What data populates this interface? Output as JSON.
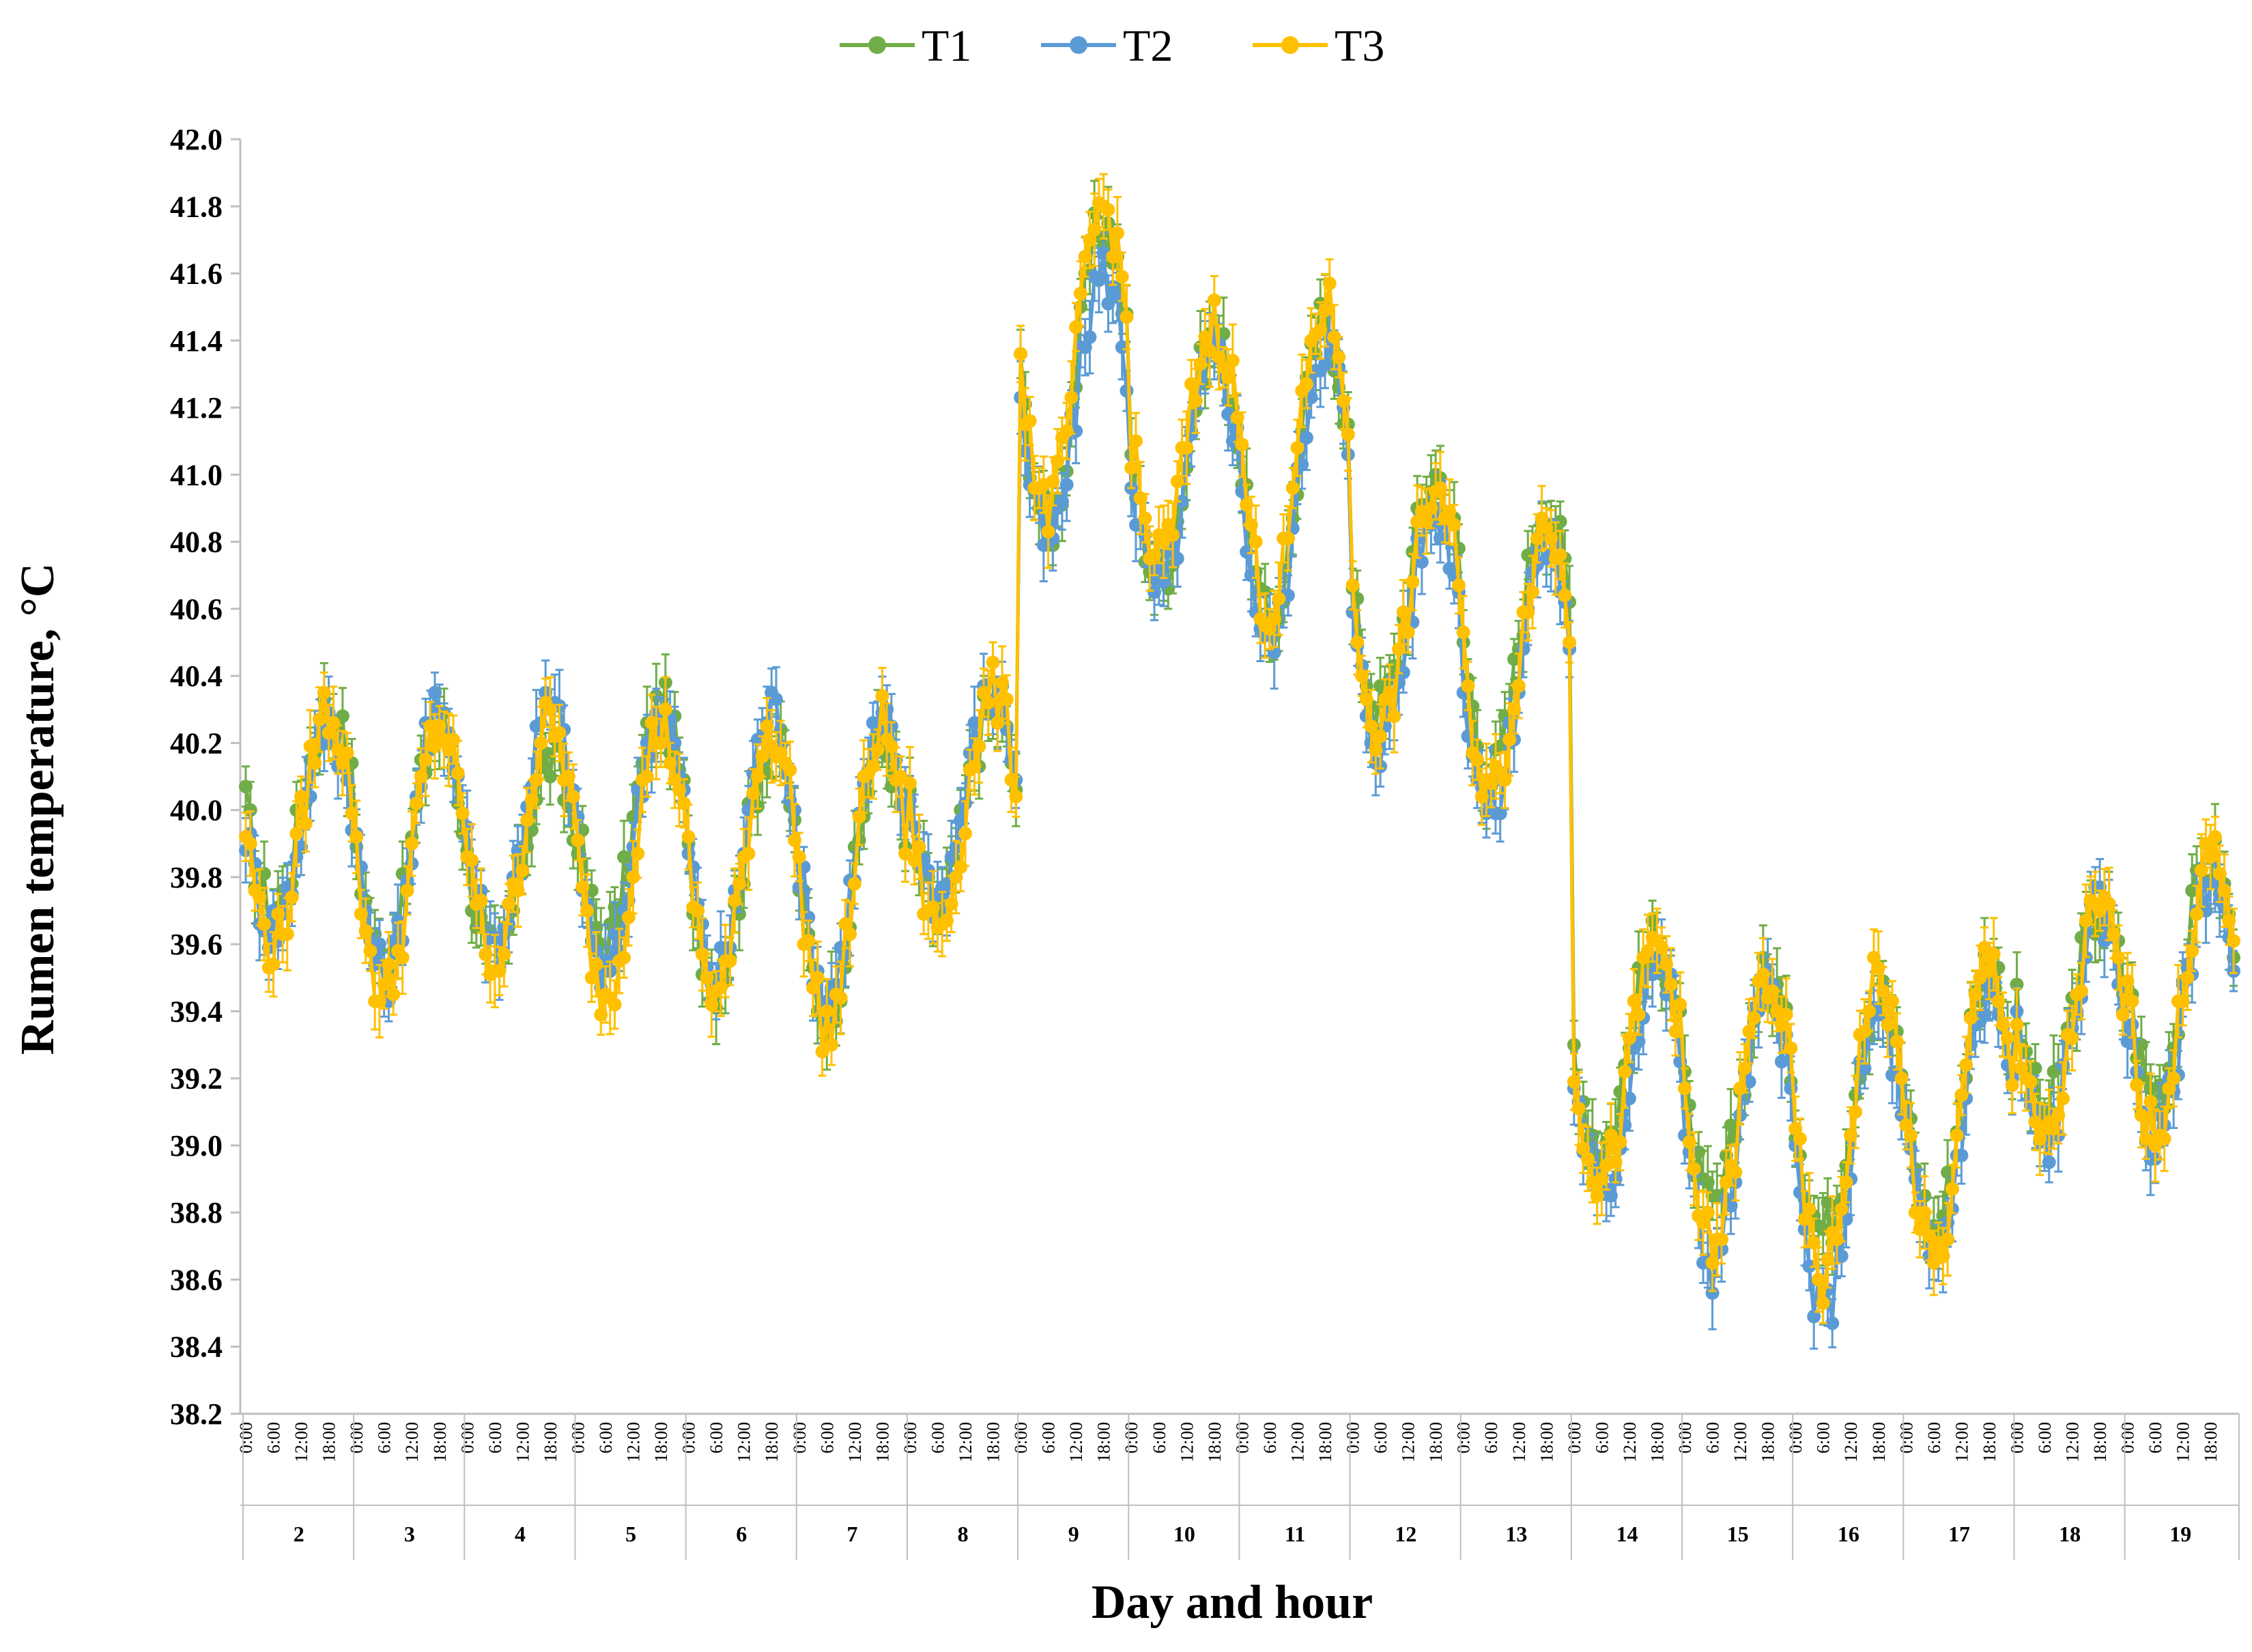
{
  "chart_data": {
    "type": "line",
    "title": "",
    "xlabel": "Day and hour",
    "ylabel": "Rumen temperature, °C",
    "ylim": [
      38.2,
      42.0
    ],
    "ytick_step": 0.2,
    "yticks": [
      "38.2",
      "38.4",
      "38.6",
      "38.8",
      "39.0",
      "39.2",
      "39.4",
      "39.6",
      "39.8",
      "40.0",
      "40.2",
      "40.4",
      "40.6",
      "40.8",
      "41.0",
      "41.2",
      "41.4",
      "41.6",
      "41.8",
      "42.0"
    ],
    "hour_labels": [
      "0:00",
      "6:00",
      "12:00",
      "18:00"
    ],
    "days": [
      "2",
      "3",
      "4",
      "5",
      "6",
      "7",
      "8",
      "9",
      "10",
      "11",
      "12",
      "13",
      "14",
      "15",
      "16",
      "17",
      "18",
      "19"
    ],
    "points_per_day": 24,
    "x_start": "day 2, 0:00",
    "x_interval_hours": 1,
    "legend_position": "top-center",
    "error_bars": true,
    "grid": false,
    "series": [
      {
        "name": "T1",
        "color": "#70AD47",
        "daily_mean": [
          40.0,
          39.9,
          39.85,
          39.95,
          39.85,
          39.8,
          40.0,
          41.3,
          41.05,
          41.0,
          40.65,
          40.5,
          39.3,
          39.15,
          39.1,
          39.15,
          39.4,
          39.5
        ],
        "daily_amplitude": [
          0.3,
          0.35,
          0.3,
          0.35,
          0.35,
          0.4,
          0.3,
          0.45,
          0.35,
          0.45,
          0.35,
          0.4,
          0.3,
          0.35,
          0.35,
          0.4,
          0.3,
          0.35
        ]
      },
      {
        "name": "T2",
        "color": "#5B9BD5",
        "daily_mean": [
          39.95,
          39.9,
          39.95,
          39.9,
          39.9,
          39.85,
          40.05,
          41.2,
          41.0,
          40.95,
          40.55,
          40.4,
          39.2,
          39.05,
          38.95,
          39.05,
          39.35,
          39.4
        ],
        "daily_amplitude": [
          0.3,
          0.4,
          0.35,
          0.4,
          0.4,
          0.4,
          0.3,
          0.4,
          0.35,
          0.45,
          0.35,
          0.4,
          0.35,
          0.4,
          0.45,
          0.4,
          0.35,
          0.4
        ]
      },
      {
        "name": "T3",
        "color": "#FFC000",
        "daily_mean": [
          39.95,
          39.85,
          39.9,
          39.85,
          39.85,
          39.8,
          40.0,
          41.35,
          41.1,
          41.05,
          40.6,
          40.45,
          39.25,
          39.1,
          39.05,
          39.1,
          39.35,
          39.45
        ],
        "daily_amplitude": [
          0.35,
          0.4,
          0.35,
          0.4,
          0.4,
          0.45,
          0.35,
          0.45,
          0.35,
          0.45,
          0.35,
          0.4,
          0.35,
          0.4,
          0.45,
          0.45,
          0.35,
          0.4
        ]
      }
    ]
  }
}
